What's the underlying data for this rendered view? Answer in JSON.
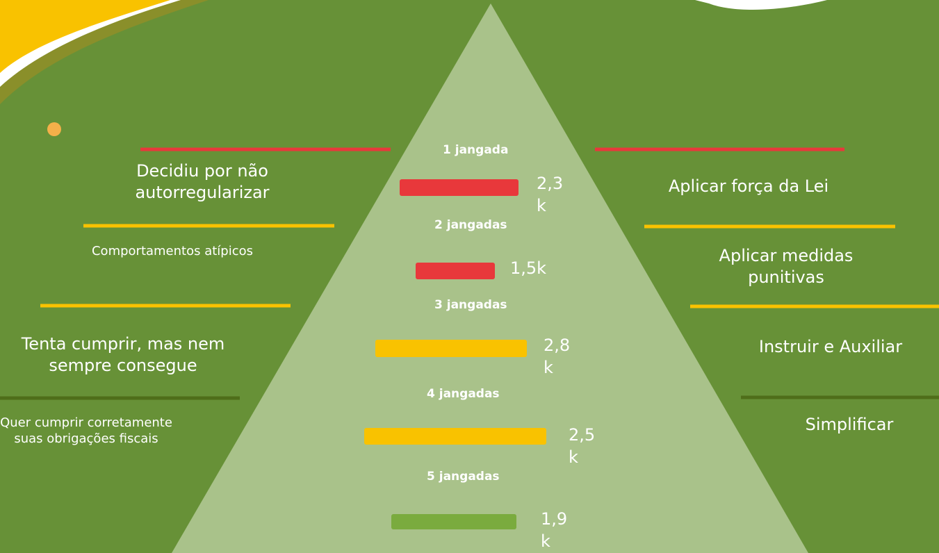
{
  "levels": [
    {
      "title": "1 jangada",
      "value": "2,3k",
      "color": "#e8383b"
    },
    {
      "title": "2 jangadas",
      "value": "1,5k",
      "color": "#e8383b"
    },
    {
      "title": "3 jangadas",
      "value": "2,8k",
      "color": "#f9c200"
    },
    {
      "title": "4 jangadas",
      "value": "2,5k",
      "color": "#f9c200"
    },
    {
      "title": "5 jangadas",
      "value": "1,9k",
      "color": "#7aab3e"
    }
  ],
  "behaviors": [
    "Decidiu por não autorregularizar",
    "Comportamentos atípicos",
    "Tenta cumprir, mas nem sempre consegue",
    "Quer cumprir corretamente suas obrigações fiscais"
  ],
  "actions": [
    "Aplicar força da Lei",
    "Aplicar medidas punitivas",
    "Instruir e Auxiliar",
    "Simplificar"
  ]
}
